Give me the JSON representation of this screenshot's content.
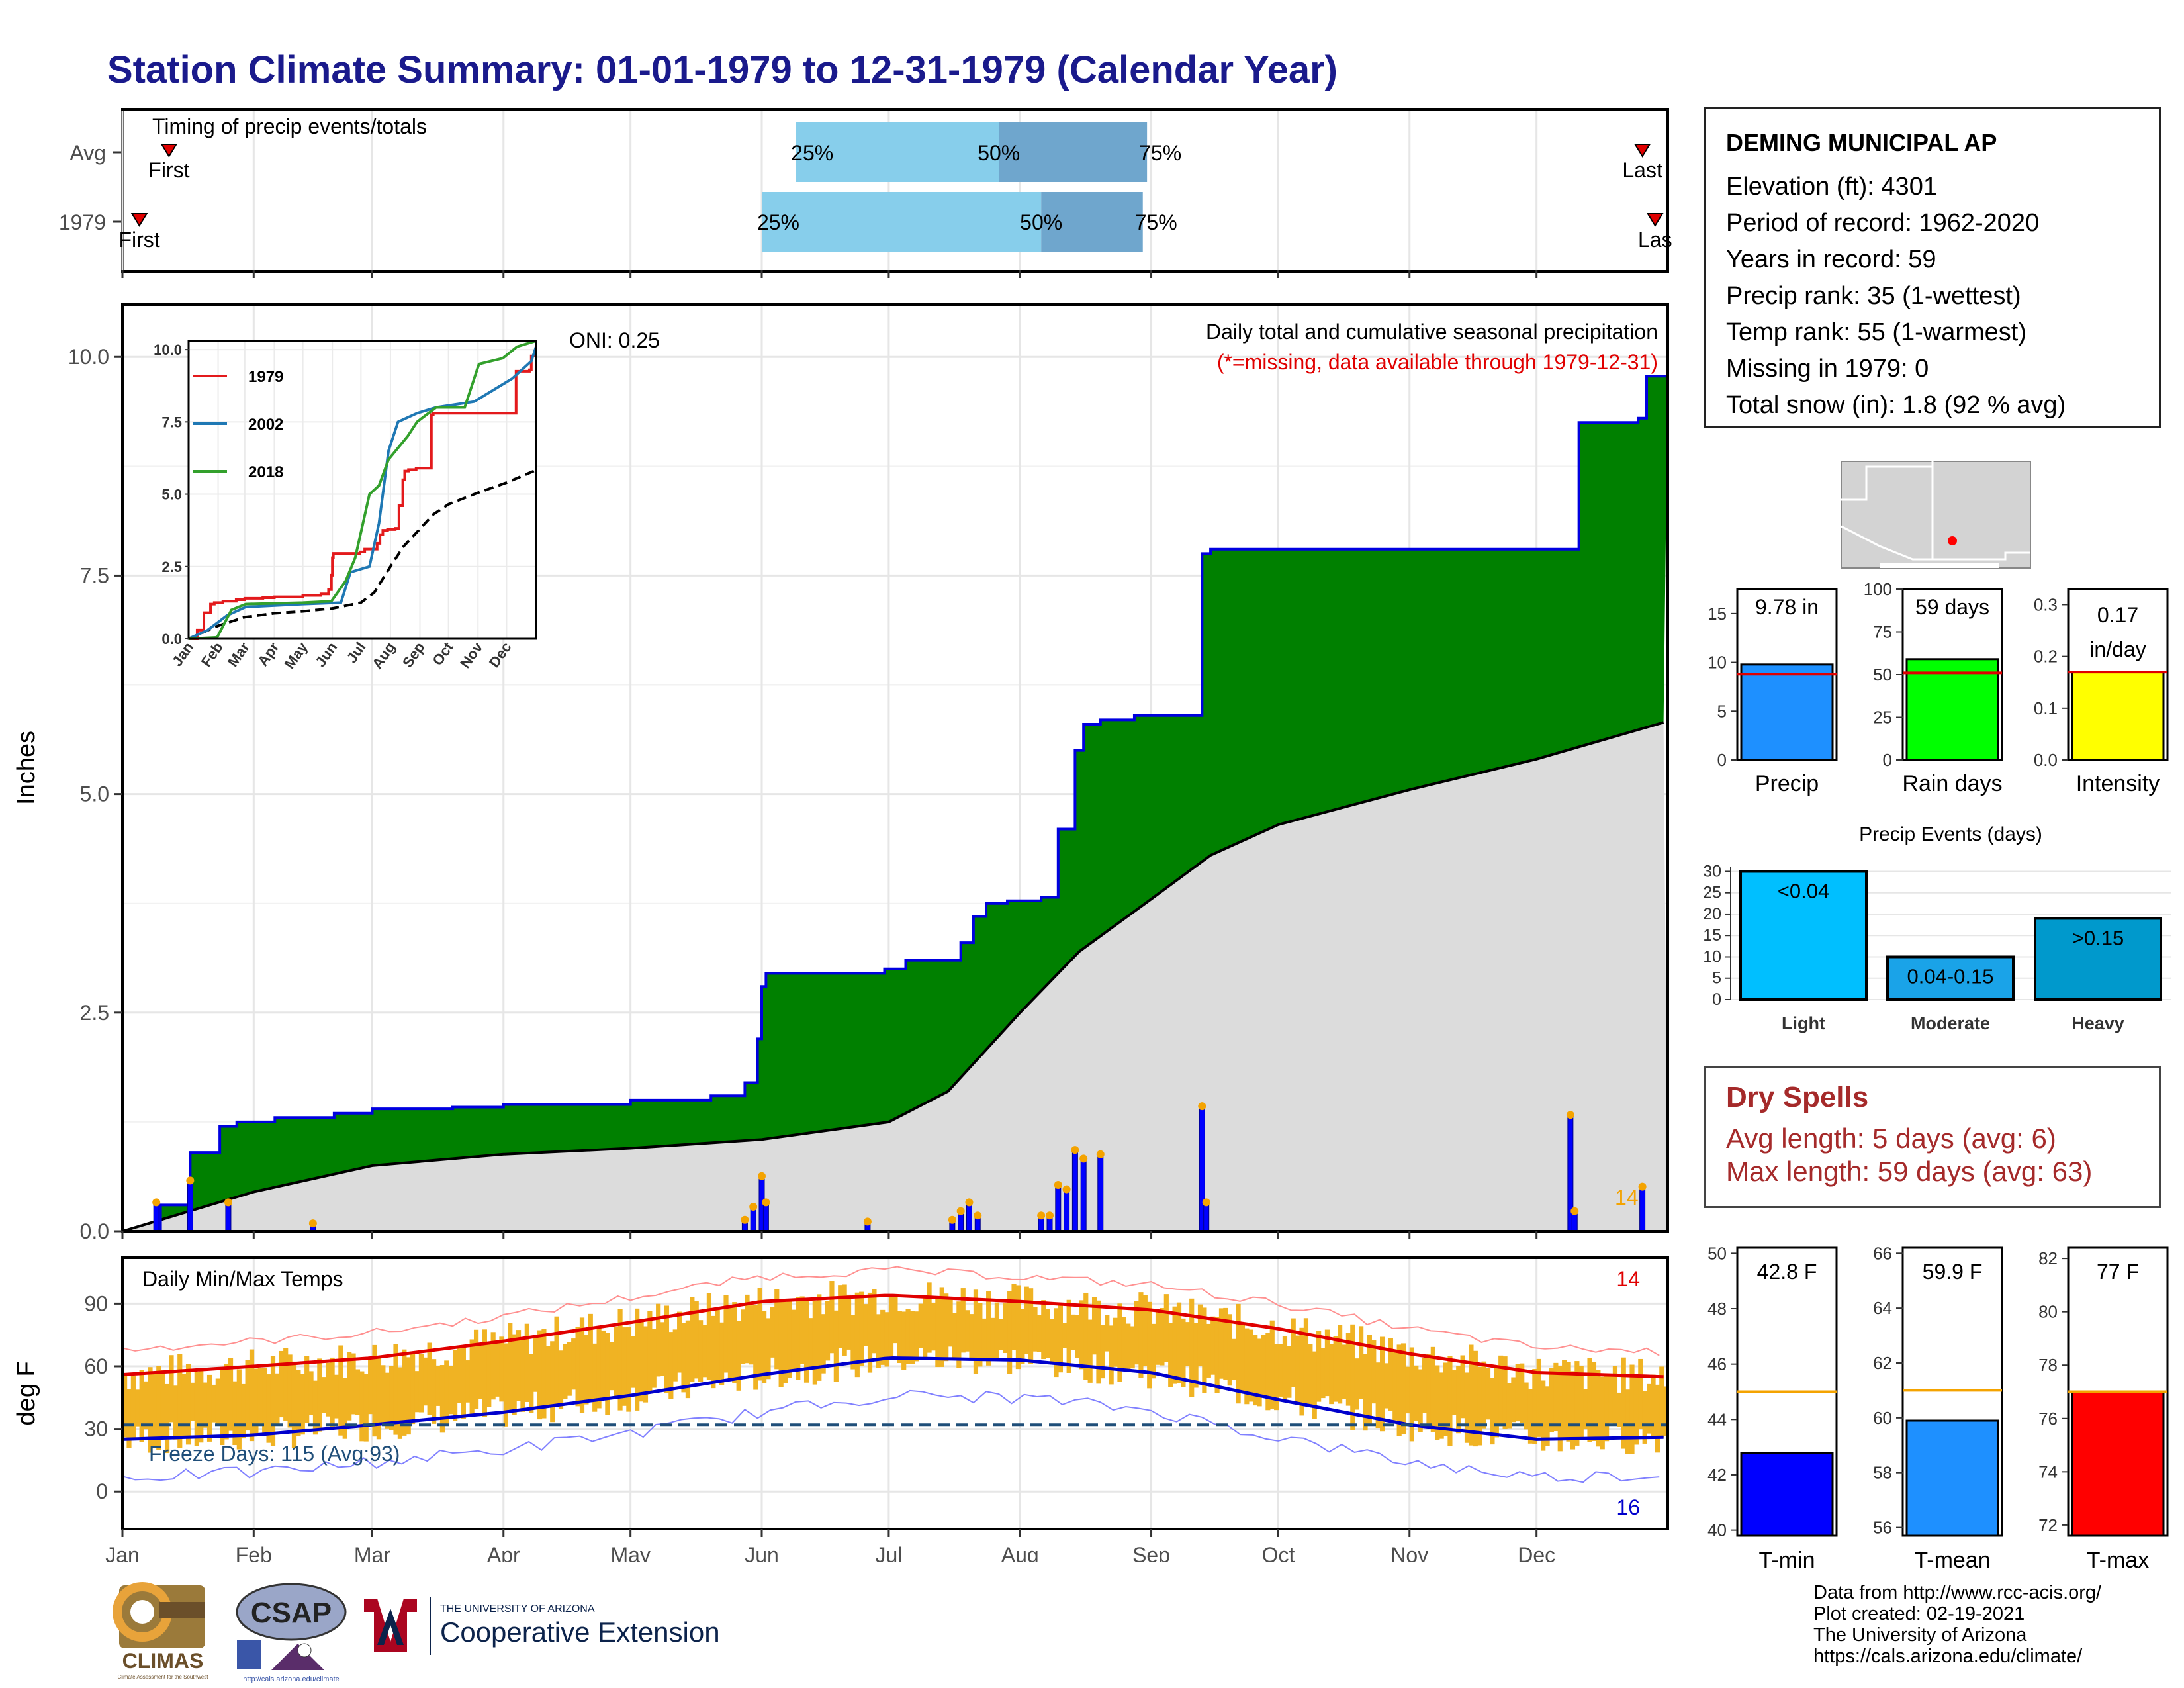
{
  "title": "Station Climate Summary: 01-01-1979 to 12-31-1979 (Calendar Year)",
  "timing_panel": {
    "label": "Timing of precip events/totals",
    "rows": [
      {
        "name": "Avg",
        "first_label": "First",
        "last_label": "Last",
        "first_date": "1979-01-12",
        "last_date": "1979-12-26",
        "q25_label": "25%",
        "q50_label": "50%",
        "q75_label": "75%",
        "q25_date": "1979-06-09",
        "q50_date": "1979-07-27",
        "q75_date": "1979-08-31"
      },
      {
        "name": "1979",
        "first_label": "First",
        "last_label": "Las",
        "first_date": "1979-01-05",
        "last_date": "1979-12-29",
        "q25_label": "25%",
        "q50_label": "50%",
        "q75_label": "75%",
        "q25_date": "1979-06-01",
        "q50_date": "1979-08-06",
        "q75_date": "1979-08-30"
      }
    ]
  },
  "precip_panel": {
    "ylabel": "Inches",
    "yticks": [
      "0.0",
      "2.5",
      "5.0",
      "7.5",
      "10.0"
    ],
    "oni": "ONI: 0.25",
    "note1": "Daily total and cumulative seasonal precipitation",
    "note2": "(*=missing, data available through 1979-12-31)",
    "count_label": "14",
    "colors": {
      "cumulative_fill": "#008000",
      "cumulative_line": "#0000e0",
      "avg_fill": "#dcdcdc",
      "daily_bars": "#0000ff",
      "event_marker": "#f4a300"
    }
  },
  "temp_panel": {
    "ylabel": "deg F",
    "title": "Daily Min/Max Temps",
    "yticks": [
      "0",
      "30",
      "60",
      "90"
    ],
    "freeze_label": "Freeze Days: 115 (Avg:93)",
    "hot_count": "14",
    "cold_count": "16"
  },
  "months": [
    "Jan",
    "Feb",
    "Mar",
    "Apr",
    "May",
    "Jun",
    "Jul",
    "Aug",
    "Sep",
    "Oct",
    "Nov",
    "Dec"
  ],
  "inset": {
    "yticks": [
      "0.0",
      "2.5",
      "5.0",
      "7.5",
      "10.0"
    ],
    "months": [
      "Jan",
      "Feb",
      "Mar",
      "Apr",
      "May",
      "Jun",
      "Jul",
      "Aug",
      "Sep",
      "Oct",
      "Nov",
      "Dec"
    ],
    "legend": [
      {
        "name": "1979",
        "color": "#e31a1c"
      },
      {
        "name": "2002",
        "color": "#1f78b4"
      },
      {
        "name": "2018",
        "color": "#33a02c"
      }
    ]
  },
  "station": {
    "name": "DEMING MUNICIPAL AP",
    "lines": [
      "Elevation (ft): 4301",
      "Period of record: 1962-2020",
      "Years in record: 59",
      "Precip rank: 35 (1-wettest)",
      "Temp rank: 55 (1-warmest)",
      "Missing in 1979: 0",
      "Total snow (in): 1.8 (92 % avg)"
    ]
  },
  "summary_bars": [
    {
      "name": "Precip",
      "label": "9.78 in",
      "value": 9.78,
      "avg": 8.8,
      "ymax": 17.5,
      "yticks": [
        "0",
        "5",
        "10",
        "15"
      ],
      "color": "#1e90ff"
    },
    {
      "name": "Rain days",
      "label": "59 days",
      "value": 59,
      "avg": 51,
      "ymax": 100,
      "yticks": [
        "0",
        "25",
        "50",
        "75",
        "100"
      ],
      "color": "#00ff00"
    },
    {
      "name": "Intensity",
      "label1": "0.17",
      "label2": "in/day",
      "value": 0.17,
      "avg": 0.17,
      "ymax": 0.33,
      "yticks": [
        "0.0",
        "0.1",
        "0.2",
        "0.3"
      ],
      "color": "#ffff00"
    }
  ],
  "events_chart": {
    "title": "Precip Events (days)",
    "yticks": [
      "0",
      "5",
      "10",
      "15",
      "20",
      "25",
      "30"
    ],
    "bars": [
      {
        "name": "Light",
        "label": "<0.04",
        "value": 30,
        "color": "#00bfff"
      },
      {
        "name": "Moderate",
        "label": "0.04-0.15",
        "value": 10,
        "color": "#1aa3e8"
      },
      {
        "name": "Heavy",
        "label": ">0.15",
        "value": 19,
        "color": "#0099cc"
      }
    ]
  },
  "dry_spells": {
    "title": "Dry Spells",
    "avg_line": "Avg length: 5 days (avg: 6)",
    "max_line": "Max length: 59 days (avg: 63)"
  },
  "temp_bars": [
    {
      "name": "T-min",
      "label": "42.8 F",
      "value": 42.8,
      "avg": 45.0,
      "ymin": 39.8,
      "ymax": 50.2,
      "yticks": [
        "40",
        "42",
        "44",
        "46",
        "48",
        "50"
      ],
      "color": "#0000ff"
    },
    {
      "name": "T-mean",
      "label": "59.9 F",
      "value": 59.9,
      "avg": 61.0,
      "ymin": 55.7,
      "ymax": 66.2,
      "yticks": [
        "56",
        "58",
        "60",
        "62",
        "64",
        "66"
      ],
      "color": "#1e90ff"
    },
    {
      "name": "T-max",
      "label": "77 F",
      "value": 77.0,
      "avg": 77.0,
      "ymin": 71.6,
      "ymax": 82.4,
      "yticks": [
        "72",
        "74",
        "76",
        "78",
        "80",
        "82"
      ],
      "color": "#ff0000"
    }
  ],
  "credits": [
    "Data from http://www.rcc-acis.org/",
    "Plot created: 02-19-2021",
    "The University of Arizona",
    "https://cals.arizona.edu/climate/"
  ],
  "logos": {
    "climas": "CLIMAS",
    "climas_sub": "Climate Assessment for the Southwest",
    "csap": "CSAP",
    "csap_url": "http://cals.arizona.edu/climate",
    "ua_small": "THE UNIVERSITY OF ARIZONA",
    "ua_big": "Cooperative Extension"
  },
  "chart_data": [
    {
      "type": "area",
      "title": "Daily total and cumulative seasonal precipitation",
      "ylabel": "Inches",
      "ylim": [
        0,
        10.6
      ],
      "series": [
        {
          "name": "cumulative",
          "x": [
            "1979-01-01",
            "1979-01-10",
            "1979-01-17",
            "1979-01-24",
            "1979-01-28",
            "1979-02-06",
            "1979-02-20",
            "1979-03-01",
            "1979-03-20",
            "1979-04-01",
            "1979-05-01",
            "1979-05-20",
            "1979-05-28",
            "1979-05-31",
            "1979-06-01",
            "1979-06-02",
            "1979-06-30",
            "1979-07-05",
            "1979-07-15",
            "1979-07-18",
            "1979-07-21",
            "1979-07-24",
            "1979-07-29",
            "1979-08-06",
            "1979-08-10",
            "1979-08-14",
            "1979-08-16",
            "1979-08-20",
            "1979-08-28",
            "1979-09-13",
            "1979-09-15",
            "1979-10-15",
            "1979-11-15",
            "1979-12-09",
            "1979-12-11",
            "1979-12-25",
            "1979-12-27",
            "1979-12-31"
          ],
          "values": [
            0.0,
            0.3,
            0.9,
            1.2,
            1.25,
            1.3,
            1.35,
            1.4,
            1.42,
            1.45,
            1.5,
            1.55,
            1.7,
            2.2,
            2.8,
            2.95,
            3.0,
            3.1,
            3.1,
            3.3,
            3.6,
            3.75,
            3.78,
            3.82,
            4.6,
            5.5,
            5.8,
            5.85,
            5.9,
            7.75,
            7.8,
            7.8,
            7.8,
            7.8,
            9.25,
            9.3,
            9.78,
            9.78
          ]
        },
        {
          "name": "average",
          "x": [
            "1979-01-01",
            "1979-02-01",
            "1979-03-01",
            "1979-04-01",
            "1979-05-01",
            "1979-06-01",
            "1979-07-01",
            "1979-07-15",
            "1979-08-01",
            "1979-08-15",
            "1979-09-01",
            "1979-09-15",
            "1979-10-01",
            "1979-11-01",
            "1979-12-01",
            "1979-12-31"
          ],
          "values": [
            0.0,
            0.45,
            0.75,
            0.88,
            0.95,
            1.05,
            1.25,
            1.6,
            2.5,
            3.2,
            3.8,
            4.3,
            4.65,
            5.05,
            5.4,
            5.82
          ]
        }
      ],
      "daily": {
        "x": [
          "1979-01-09",
          "1979-01-17",
          "1979-01-26",
          "1979-02-15",
          "1979-05-28",
          "1979-05-30",
          "1979-06-01",
          "1979-06-02",
          "1979-06-26",
          "1979-07-16",
          "1979-07-18",
          "1979-07-20",
          "1979-07-22",
          "1979-08-06",
          "1979-08-08",
          "1979-08-10",
          "1979-08-12",
          "1979-08-14",
          "1979-08-16",
          "1979-08-20",
          "1979-09-13",
          "1979-09-14",
          "1979-12-09",
          "1979-12-10",
          "1979-12-26"
        ],
        "values": [
          0.3,
          0.55,
          0.3,
          0.06,
          0.1,
          0.25,
          0.6,
          0.3,
          0.08,
          0.1,
          0.2,
          0.3,
          0.15,
          0.15,
          0.15,
          0.5,
          0.45,
          0.9,
          0.8,
          0.85,
          1.4,
          0.3,
          1.3,
          0.2,
          0.48
        ]
      }
    },
    {
      "type": "line",
      "title": "Daily Min/Max Temps",
      "ylabel": "deg F",
      "ylim": [
        -18,
        112
      ],
      "series": [
        {
          "name": "avg max",
          "x": [
            "1979-01-01",
            "1979-02-01",
            "1979-03-01",
            "1979-04-01",
            "1979-05-01",
            "1979-06-01",
            "1979-07-01",
            "1979-08-01",
            "1979-09-01",
            "1979-10-01",
            "1979-11-01",
            "1979-12-01",
            "1979-12-31"
          ],
          "values": [
            56,
            60,
            64,
            72,
            81,
            91,
            94,
            91,
            87,
            78,
            66,
            57,
            55
          ]
        },
        {
          "name": "avg min",
          "x": [
            "1979-01-01",
            "1979-02-01",
            "1979-03-01",
            "1979-04-01",
            "1979-05-01",
            "1979-06-01",
            "1979-07-01",
            "1979-08-01",
            "1979-09-01",
            "1979-10-01",
            "1979-11-01",
            "1979-12-01",
            "1979-12-31"
          ],
          "values": [
            25,
            27,
            32,
            38,
            46,
            56,
            64,
            63,
            57,
            44,
            32,
            25,
            26
          ]
        }
      ]
    },
    {
      "type": "inset-line",
      "series": [
        {
          "name": "1979"
        },
        {
          "name": "2002"
        },
        {
          "name": "2018"
        }
      ]
    }
  ]
}
